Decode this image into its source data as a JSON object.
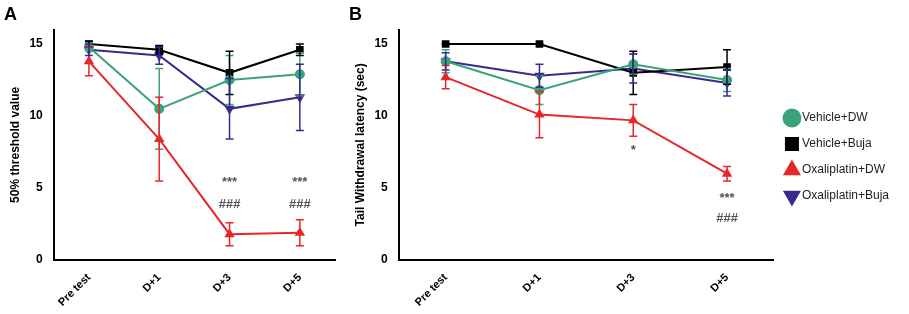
{
  "chart_data": [
    {
      "type": "line",
      "title": "A",
      "y_label": "50% threshold value",
      "categories": [
        "Pre test",
        "D+1",
        "D+3",
        "D+5"
      ],
      "ylim": [
        0,
        16
      ],
      "yticks": [
        0,
        5,
        10,
        15
      ],
      "grid": false,
      "series": [
        {
          "name": "Vehicle+DW",
          "color": "#3aa37a",
          "marker": "circle",
          "values": [
            14.8,
            10.5,
            12.5,
            12.9
          ],
          "errors": [
            0.3,
            2.8,
            1.7,
            1.5
          ]
        },
        {
          "name": "Vehicle+Buja",
          "color": "#000000",
          "marker": "square",
          "values": [
            15.0,
            14.6,
            13.0,
            14.6
          ],
          "errors": [
            0.2,
            0.3,
            1.5,
            0.4
          ]
        },
        {
          "name": "Oxaliplatin+DW",
          "color": "#e8262a",
          "marker": "triangle",
          "values": [
            13.8,
            8.4,
            1.8,
            1.9
          ],
          "errors": [
            1.0,
            2.9,
            0.8,
            0.9
          ]
        },
        {
          "name": "Oxaliplatin+Buja",
          "color": "#3b2a8c",
          "marker": "triangle-down",
          "values": [
            14.6,
            14.2,
            10.5,
            11.3
          ],
          "errors": [
            0.4,
            0.6,
            2.1,
            2.3
          ]
        }
      ],
      "annotations": [
        {
          "x": "D+3",
          "y": 5.4,
          "text": "***"
        },
        {
          "x": "D+3",
          "y": 3.9,
          "text": "###"
        },
        {
          "x": "D+5",
          "y": 5.4,
          "text": "***"
        },
        {
          "x": "D+5",
          "y": 3.9,
          "text": "###"
        }
      ]
    },
    {
      "type": "line",
      "title": "B",
      "y_label": "Tail Withdrawal latency (sec)",
      "categories": [
        "Pre test",
        "D+1",
        "D+3",
        "D+5"
      ],
      "ylim": [
        0,
        16
      ],
      "yticks": [
        0,
        5,
        10,
        15
      ],
      "grid": false,
      "legend": "right",
      "series": [
        {
          "name": "Vehicle+DW",
          "color": "#3aa37a",
          "marker": "circle",
          "values": [
            13.8,
            11.8,
            13.6,
            12.5
          ],
          "errors": [
            0.8,
            1.0,
            0.7,
            0.8
          ]
        },
        {
          "name": "Vehicle+Buja",
          "color": "#000000",
          "marker": "square",
          "values": [
            15.0,
            15.0,
            13.0,
            13.4
          ],
          "errors": [
            0.0,
            0.0,
            1.5,
            1.2
          ]
        },
        {
          "name": "Oxaliplatin+DW",
          "color": "#e8262a",
          "marker": "triangle",
          "values": [
            12.7,
            10.1,
            9.7,
            6.0
          ],
          "errors": [
            0.8,
            1.6,
            1.1,
            0.5
          ]
        },
        {
          "name": "Oxaliplatin+Buja",
          "color": "#3b2a8c",
          "marker": "triangle-down",
          "values": [
            13.8,
            12.8,
            13.3,
            12.3
          ],
          "errors": [
            0.6,
            0.8,
            1.0,
            0.9
          ]
        }
      ],
      "annotations": [
        {
          "x": "D+3",
          "y": 7.6,
          "text": "*"
        },
        {
          "x": "D+5",
          "y": 4.3,
          "text": "***"
        },
        {
          "x": "D+5",
          "y": 2.9,
          "text": "###"
        }
      ]
    }
  ]
}
